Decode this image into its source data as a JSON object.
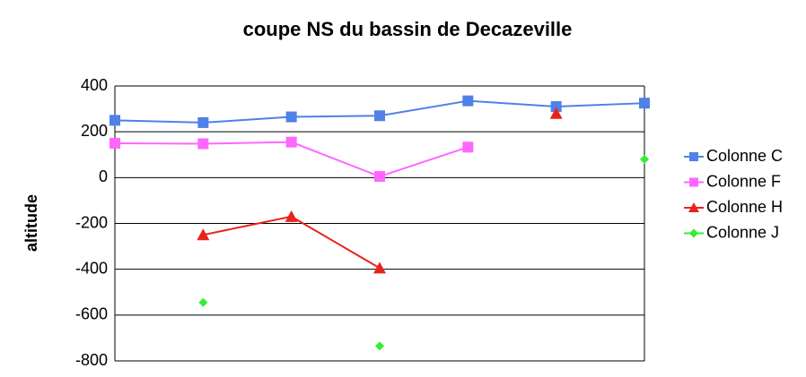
{
  "chart_data": {
    "type": "line",
    "title": "coupe NS du bassin de Decazeville",
    "y_label": "altitude",
    "categories": [
      null,
      null,
      null,
      null,
      null,
      null,
      null
    ],
    "ylim": [
      -800,
      400
    ],
    "yticks": [
      -800,
      -600,
      -400,
      -200,
      0,
      200,
      400
    ],
    "grid": true,
    "legend": "right",
    "series": [
      {
        "name": "Colonne C",
        "color": "#4f81e8",
        "marker": "square",
        "line": true,
        "values": [
          250,
          240,
          265,
          270,
          335,
          310,
          325
        ]
      },
      {
        "name": "Colonne F",
        "color": "#ff66ff",
        "marker": "square",
        "line": true,
        "values": [
          150,
          148,
          155,
          5,
          133,
          null,
          null
        ]
      },
      {
        "name": "Colonne H",
        "color": "#e8231c",
        "marker": "triangle",
        "line": true,
        "values": [
          null,
          -250,
          -170,
          -395,
          null,
          280,
          null
        ]
      },
      {
        "name": "Colonne J",
        "color": "#33ee33",
        "marker": "diamond",
        "line": false,
        "values": [
          null,
          -545,
          null,
          -735,
          null,
          null,
          80
        ]
      }
    ]
  }
}
